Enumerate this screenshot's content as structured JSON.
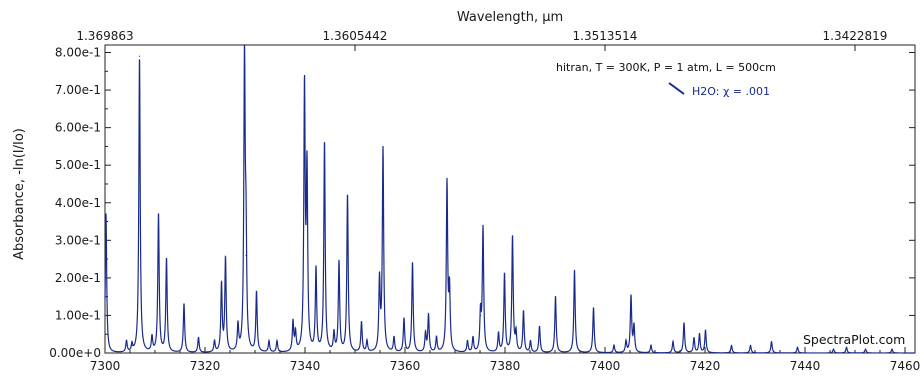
{
  "chart_data": {
    "type": "line",
    "title": "",
    "top_axis_label": "Wavelength, µm",
    "top_tick_labels": [
      "1.369863",
      "1.3605442",
      "1.3513514",
      "1.3422819"
    ],
    "top_tick_positions": [
      7300,
      7350,
      7400,
      7450
    ],
    "xlabel": "",
    "ylabel": "Absorbance, -ln(I/Io)",
    "xlim": [
      7300,
      7462
    ],
    "ylim": [
      0,
      0.82
    ],
    "xticks": [
      7300,
      7320,
      7340,
      7360,
      7380,
      7400,
      7420,
      7440,
      7460
    ],
    "yticks": [
      0,
      0.1,
      0.2,
      0.3,
      0.4,
      0.5,
      0.6,
      0.7,
      0.8
    ],
    "ytick_labels": [
      "0.00e+0",
      "1.00e-1",
      "2.00e-1",
      "3.00e-1",
      "4.00e-1",
      "5.00e-1",
      "6.00e-1",
      "7.00e-1",
      "8.00e-1"
    ],
    "xtick_labels": [
      "7300",
      "7320",
      "7340",
      "7360",
      "7380",
      "7400",
      "7420",
      "7440",
      "7460"
    ],
    "annotation": "hitran, T = 300K, P = 1 atm, L = 500cm",
    "legend": {
      "label": "H2O: χ = .001",
      "position": "top-right"
    },
    "credit": "SpectraPlot.com",
    "series": [
      {
        "name": "H2O: χ = .001",
        "color": "#1a2a8a",
        "peaks": [
          [
            7300.2,
            0.37
          ],
          [
            7304.3,
            0.03
          ],
          [
            7305.4,
            0.02
          ],
          [
            7306.9,
            0.79
          ],
          [
            7309.4,
            0.04
          ],
          [
            7310.7,
            0.37
          ],
          [
            7312.3,
            0.25
          ],
          [
            7315.8,
            0.13
          ],
          [
            7318.7,
            0.04
          ],
          [
            7321.9,
            0.03
          ],
          [
            7323.3,
            0.18
          ],
          [
            7324.1,
            0.25
          ],
          [
            7326.6,
            0.07
          ],
          [
            7327.9,
            0.78
          ],
          [
            7328.2,
            0.26
          ],
          [
            7330.3,
            0.16
          ],
          [
            7332.8,
            0.03
          ],
          [
            7334.4,
            0.03
          ],
          [
            7337.6,
            0.08
          ],
          [
            7338.1,
            0.05
          ],
          [
            7339.9,
            0.7
          ],
          [
            7340.4,
            0.47
          ],
          [
            7342.2,
            0.22
          ],
          [
            7343.9,
            0.56
          ],
          [
            7345.8,
            0.05
          ],
          [
            7346.8,
            0.24
          ],
          [
            7348.5,
            0.42
          ],
          [
            7351.3,
            0.08
          ],
          [
            7352.4,
            0.03
          ],
          [
            7354.9,
            0.19
          ],
          [
            7355.6,
            0.54
          ],
          [
            7357.8,
            0.04
          ],
          [
            7359.8,
            0.09
          ],
          [
            7361.5,
            0.24
          ],
          [
            7364.1,
            0.05
          ],
          [
            7364.7,
            0.1
          ],
          [
            7366.3,
            0.04
          ],
          [
            7368.4,
            0.45
          ],
          [
            7368.9,
            0.16
          ],
          [
            7372.5,
            0.03
          ],
          [
            7373.6,
            0.04
          ],
          [
            7375.1,
            0.1
          ],
          [
            7375.6,
            0.33
          ],
          [
            7378.7,
            0.05
          ],
          [
            7379.9,
            0.21
          ],
          [
            7381.5,
            0.31
          ],
          [
            7382.2,
            0.05
          ],
          [
            7383.7,
            0.11
          ],
          [
            7385.1,
            0.03
          ],
          [
            7386.9,
            0.07
          ],
          [
            7390.1,
            0.15
          ],
          [
            7393.9,
            0.22
          ],
          [
            7397.7,
            0.12
          ],
          [
            7401.8,
            0.02
          ],
          [
            7404.2,
            0.03
          ],
          [
            7405.2,
            0.15
          ],
          [
            7405.8,
            0.07
          ],
          [
            7409.2,
            0.02
          ],
          [
            7413.6,
            0.03
          ],
          [
            7415.8,
            0.08
          ],
          [
            7417.8,
            0.04
          ],
          [
            7418.9,
            0.05
          ],
          [
            7420.1,
            0.06
          ],
          [
            7425.3,
            0.02
          ],
          [
            7429.1,
            0.02
          ],
          [
            7433.3,
            0.03
          ],
          [
            7438.5,
            0.015
          ],
          [
            7445.7,
            0.01
          ],
          [
            7448.3,
            0.015
          ],
          [
            7452.1,
            0.01
          ],
          [
            7457.4,
            0.01
          ]
        ]
      }
    ]
  }
}
